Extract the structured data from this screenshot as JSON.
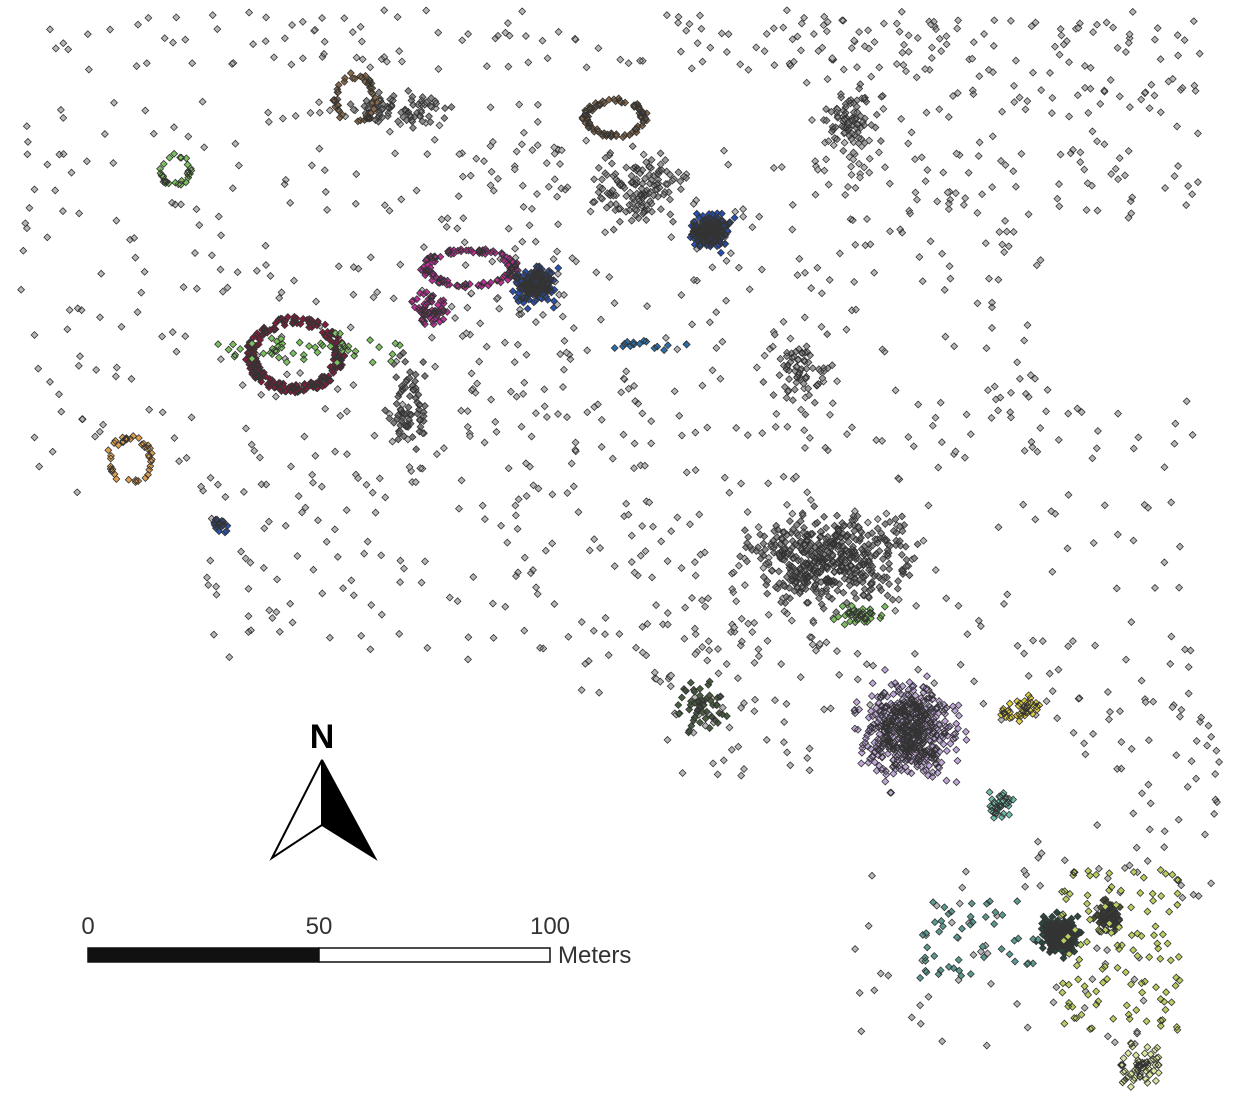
{
  "north_arrow": {
    "label": "N"
  },
  "scale_bar": {
    "ticks": [
      0,
      50,
      100
    ],
    "unit": "Meters"
  }
}
